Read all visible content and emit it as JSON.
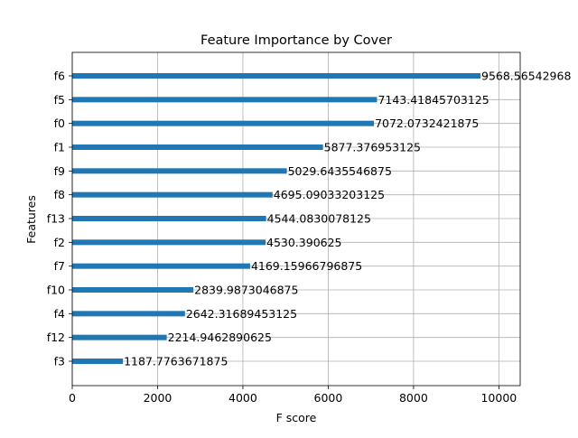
{
  "chart_data": {
    "type": "bar",
    "orientation": "horizontal",
    "title": "Feature Importance by Cover",
    "xlabel": "F score",
    "ylabel": "Features",
    "xlim": [
      0,
      10500
    ],
    "xticks": [
      0,
      2000,
      4000,
      6000,
      8000,
      10000
    ],
    "grid": true,
    "bar_color": "#1f77b4",
    "categories": [
      "f6",
      "f5",
      "f0",
      "f1",
      "f9",
      "f8",
      "f13",
      "f2",
      "f7",
      "f10",
      "f4",
      "f12",
      "f3"
    ],
    "values": [
      9568.56542968,
      7143.41845703125,
      7072.0732421875,
      5877.376953125,
      5029.6435546875,
      4695.09033203125,
      4544.0830078125,
      4530.390625,
      4169.15966796875,
      2839.9873046875,
      2642.31689453125,
      2214.9462890625,
      1187.7763671875
    ],
    "data_labels": [
      "9568.56542968",
      "7143.41845703125",
      "7072.0732421875",
      "5877.376953125",
      "5029.6435546875",
      "4695.09033203125",
      "4544.0830078125",
      "4530.390625",
      "4169.15966796875",
      "2839.9873046875",
      "2642.31689453125",
      "2214.9462890625",
      "1187.7763671875"
    ]
  }
}
